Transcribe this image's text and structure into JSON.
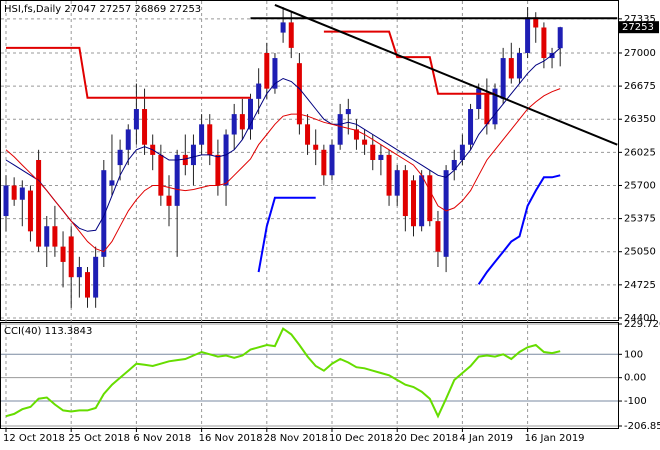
{
  "chart_data": [
    {
      "type": "candlestick",
      "title": "HSI,fs,Daily  27047 27257 26869 27253",
      "categories": [
        "12 Oct 2018",
        null,
        null,
        null,
        null,
        null,
        null,
        null,
        "25 Oct 2018",
        null,
        null,
        null,
        null,
        null,
        null,
        null,
        "6 Nov 2018",
        null,
        null,
        null,
        null,
        null,
        null,
        null,
        "16 Nov 2018",
        null,
        null,
        null,
        null,
        null,
        null,
        null,
        "28 Nov 2018",
        null,
        null,
        null,
        null,
        null,
        null,
        null,
        "10 Dec 2018",
        null,
        null,
        null,
        null,
        null,
        null,
        null,
        "20 Dec 2018",
        null,
        null,
        null,
        null,
        null,
        null,
        null,
        "4 Jan 2019",
        null,
        null,
        null,
        null,
        null,
        null,
        null,
        "16 Jan 2019",
        null,
        null,
        null,
        null
      ],
      "open": [
        25400,
        25700,
        25560,
        25650,
        25950,
        25100,
        25300,
        25100,
        25200,
        24800,
        24850,
        24600,
        25000,
        25700,
        25900,
        26050,
        26250,
        26450,
        26100,
        26000,
        25600,
        25500,
        26000,
        25900,
        26100,
        26300,
        26000,
        25700,
        26200,
        26400,
        26250,
        26550,
        27000,
        26650,
        27200,
        27300,
        26900,
        26300,
        26100,
        26050,
        25800,
        26100,
        26400,
        26250,
        26150,
        26100,
        25950,
        26000,
        25600,
        25850,
        25750,
        25300,
        25800,
        25350,
        25000,
        25850,
        25950,
        26100,
        26450,
        26600,
        26300,
        26550,
        26950,
        26750,
        27000,
        27350,
        27250,
        26950,
        27047
      ],
      "high": [
        25800,
        25780,
        25750,
        25700,
        26050,
        25400,
        25500,
        25250,
        25300,
        25000,
        24900,
        25100,
        25950,
        26200,
        26150,
        26300,
        26700,
        26650,
        26200,
        26100,
        25800,
        26050,
        26200,
        26200,
        26400,
        26400,
        26150,
        26250,
        26500,
        26550,
        26600,
        26850,
        27100,
        27000,
        27450,
        27400,
        27000,
        26400,
        26250,
        26100,
        26150,
        26500,
        26550,
        26350,
        26250,
        26200,
        26100,
        26050,
        25900,
        25900,
        25800,
        25850,
        25850,
        25450,
        25900,
        26050,
        26200,
        26500,
        26700,
        26750,
        26700,
        27050,
        27100,
        27050,
        27450,
        27400,
        27300,
        27050,
        27257
      ],
      "low": [
        25250,
        25500,
        25300,
        25150,
        25050,
        24900,
        25000,
        24700,
        24500,
        24600,
        24500,
        24500,
        24900,
        25600,
        25750,
        25900,
        26100,
        26000,
        25850,
        25500,
        25300,
        25000,
        25800,
        25700,
        26000,
        25900,
        25600,
        25500,
        26050,
        26150,
        26150,
        26400,
        26550,
        26600,
        27100,
        26950,
        26200,
        26000,
        25900,
        25700,
        25750,
        26050,
        26200,
        26050,
        26000,
        25850,
        25800,
        25500,
        25500,
        25250,
        25200,
        25250,
        25300,
        24900,
        24850,
        25750,
        25900,
        26050,
        26350,
        26200,
        26250,
        26500,
        26700,
        26700,
        26950,
        27100,
        26850,
        26850,
        26869
      ],
      "close": [
        25700,
        25560,
        25680,
        25250,
        25100,
        25300,
        25100,
        24950,
        24800,
        24900,
        24600,
        25000,
        25850,
        25750,
        26050,
        26250,
        26450,
        26100,
        26000,
        25600,
        25500,
        26000,
        25900,
        26100,
        26300,
        26000,
        25700,
        26200,
        26400,
        26250,
        26550,
        26700,
        26650,
        26950,
        27300,
        27050,
        26300,
        26100,
        26050,
        25800,
        26100,
        26400,
        26450,
        26150,
        26100,
        25950,
        26000,
        25600,
        25850,
        25400,
        25300,
        25800,
        25350,
        25050,
        25850,
        25950,
        26100,
        26450,
        26650,
        26300,
        26650,
        26950,
        26750,
        27000,
        27350,
        27250,
        26950,
        27000,
        27253
      ],
      "up_color": "#1e1eb4",
      "down_color": "#e00000",
      "series": [
        {
          "color": "#000080",
          "width": 1,
          "values": [
            25950,
            25900,
            25850,
            25800,
            25750,
            25650,
            25550,
            25450,
            25350,
            25280,
            25250,
            25260,
            25400,
            25600,
            25800,
            25950,
            26050,
            26080,
            26050,
            26000,
            25950,
            25950,
            25960,
            25980,
            26000,
            26000,
            25980,
            26000,
            26050,
            26150,
            26300,
            26450,
            26600,
            26700,
            26750,
            26720,
            26650,
            26550,
            26450,
            26350,
            26300,
            26300,
            26320,
            26300,
            26250,
            26200,
            26150,
            26100,
            26050,
            26000,
            25950,
            25900,
            25850,
            25800,
            25780,
            25850,
            25950,
            26050,
            26200,
            26300,
            26400,
            26500,
            26600,
            26700,
            26800,
            26880,
            26920,
            26980,
            27050
          ]
        },
        {
          "color": "#e00000",
          "width": 1,
          "values": [
            26050,
            25980,
            25900,
            25820,
            25740,
            25650,
            25550,
            25450,
            25350,
            25250,
            25150,
            25080,
            25050,
            25150,
            25300,
            25450,
            25560,
            25650,
            25700,
            25700,
            25680,
            25660,
            25650,
            25660,
            25680,
            25700,
            25700,
            25720,
            25800,
            25880,
            25960,
            26100,
            26200,
            26300,
            26380,
            26400,
            26400,
            26380,
            26350,
            26320,
            26300,
            26280,
            26260,
            26240,
            26200,
            26150,
            26100,
            26050,
            26000,
            25950,
            25900,
            25800,
            25650,
            25500,
            25450,
            25480,
            25550,
            25650,
            25800,
            25950,
            26050,
            26150,
            26250,
            26350,
            26450,
            26520,
            26580,
            26620,
            26650
          ]
        },
        {
          "color": "#e00000",
          "width": 2,
          "values": [
            27050,
            27050,
            27050,
            27050,
            27050,
            27050,
            27050,
            27050,
            27050,
            27050,
            26560,
            26560,
            26560,
            26560,
            26560,
            26560,
            26560,
            26560,
            26560,
            26560,
            26560,
            26560,
            26560,
            26560,
            26560,
            26560,
            26560,
            26560,
            26560,
            26560,
            26560,
            null,
            null,
            null,
            null,
            null,
            null,
            null,
            null,
            27210,
            27210,
            27210,
            27210,
            27210,
            27210,
            27210,
            27210,
            27210,
            26960,
            26960,
            26960,
            26960,
            26960,
            26600,
            26600,
            26600,
            26600,
            26600,
            26600,
            26600,
            26600,
            null,
            null,
            null,
            null,
            null,
            null,
            null,
            null
          ]
        },
        {
          "color": "#0000ff",
          "width": 2,
          "values": [
            null,
            null,
            null,
            null,
            null,
            null,
            null,
            null,
            null,
            null,
            null,
            null,
            null,
            null,
            null,
            null,
            null,
            null,
            null,
            null,
            null,
            null,
            null,
            null,
            null,
            null,
            null,
            null,
            null,
            null,
            null,
            24850,
            25300,
            25580,
            25580,
            25580,
            25580,
            25580,
            25580,
            null,
            null,
            null,
            null,
            null,
            null,
            null,
            null,
            null,
            null,
            null,
            null,
            null,
            null,
            null,
            null,
            null,
            null,
            null,
            24730,
            24850,
            24950,
            25050,
            25150,
            25200,
            25500,
            25650,
            25780,
            25780,
            25800
          ]
        }
      ],
      "trend_lines": [
        {
          "color": "#000000",
          "x": [
            33,
            75
          ],
          "values": [
            27472,
            26100
          ]
        },
        {
          "color": "#000000",
          "x": [
            30,
            75
          ],
          "values": [
            27340,
            27340
          ]
        }
      ],
      "ylim": [
        24380,
        27510
      ],
      "yticks": [
        24400,
        24725,
        25050,
        25375,
        25700,
        26025,
        26350,
        26675,
        27000,
        27335
      ],
      "grid": true
    },
    {
      "type": "line",
      "title": "CCI(40) 113.3843",
      "color": "#66dd00",
      "values": [
        -165,
        -155,
        -135,
        -125,
        -90,
        -85,
        -115,
        -140,
        -145,
        -140,
        -140,
        -130,
        -70,
        -30,
        0,
        30,
        60,
        55,
        50,
        60,
        70,
        75,
        80,
        95,
        110,
        100,
        90,
        95,
        85,
        95,
        120,
        130,
        140,
        135,
        210,
        185,
        140,
        90,
        50,
        30,
        60,
        80,
        65,
        45,
        40,
        30,
        20,
        10,
        -10,
        -30,
        -40,
        -60,
        -90,
        -165,
        -90,
        -10,
        20,
        50,
        90,
        95,
        90,
        100,
        80,
        110,
        130,
        140,
        110,
        105,
        113.3843
      ],
      "ylim": [
        -206.8507,
        229.7202
      ],
      "yticks": [
        229.7202,
        100,
        {
          "value": 0,
          "label": "0.00"
        },
        -100,
        -206.8507
      ],
      "grid": true
    }
  ]
}
